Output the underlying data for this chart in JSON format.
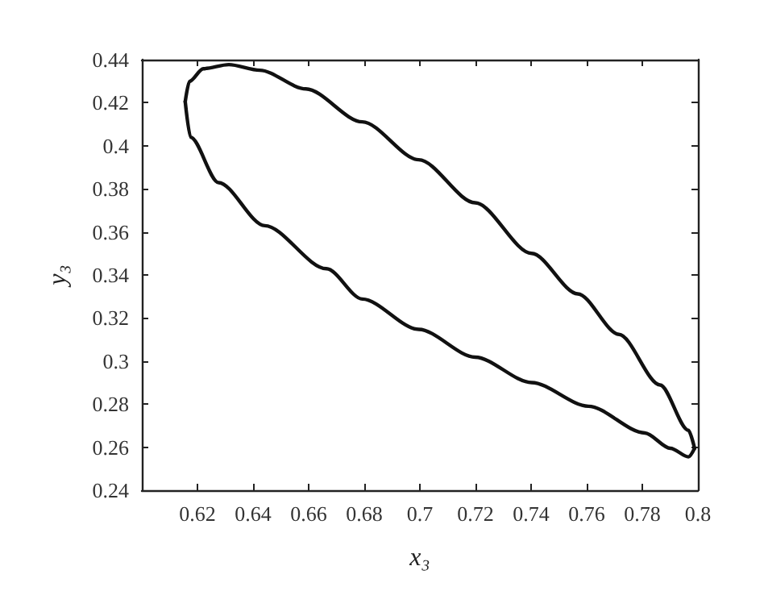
{
  "chart_data": {
    "type": "line",
    "xlabel": "x₃",
    "ylabel": "y₃",
    "xlim": [
      0.6,
      0.8
    ],
    "xticks": [
      0.62,
      0.64,
      0.66,
      0.68,
      0.7,
      0.72,
      0.74,
      0.76,
      0.78,
      0.8
    ],
    "ylim": [
      0.24,
      0.44
    ],
    "yticks": [
      0.24,
      0.26,
      0.28,
      0.3,
      0.32,
      0.34,
      0.36,
      0.38,
      0.4,
      0.42,
      0.44
    ],
    "grid": false,
    "marker": "none",
    "line_style": "solid",
    "series": [
      {
        "color": "#111111",
        "x": [
          0.6156,
          0.6171,
          0.6221,
          0.6313,
          0.6424,
          0.659,
          0.6793,
          0.6996,
          0.7199,
          0.7402,
          0.7568,
          0.7716,
          0.7864,
          0.7966,
          0.7988
        ],
        "values": [
          0.4205,
          0.4299,
          0.4358,
          0.4377,
          0.4351,
          0.4264,
          0.4111,
          0.3935,
          0.3735,
          0.35,
          0.3312,
          0.3124,
          0.2889,
          0.2678,
          0.2595
        ]
      },
      {
        "color": "#111111",
        "x": [
          0.6156,
          0.6175,
          0.6276,
          0.6442,
          0.6664,
          0.6793,
          0.6996,
          0.7199,
          0.7402,
          0.7606,
          0.7809,
          0.7901,
          0.7966,
          0.7988
        ],
        "values": [
          0.4205,
          0.404,
          0.3829,
          0.3629,
          0.3429,
          0.3288,
          0.3147,
          0.3018,
          0.29,
          0.279,
          0.2666,
          0.2595,
          0.2555,
          0.2595
        ]
      }
    ]
  }
}
